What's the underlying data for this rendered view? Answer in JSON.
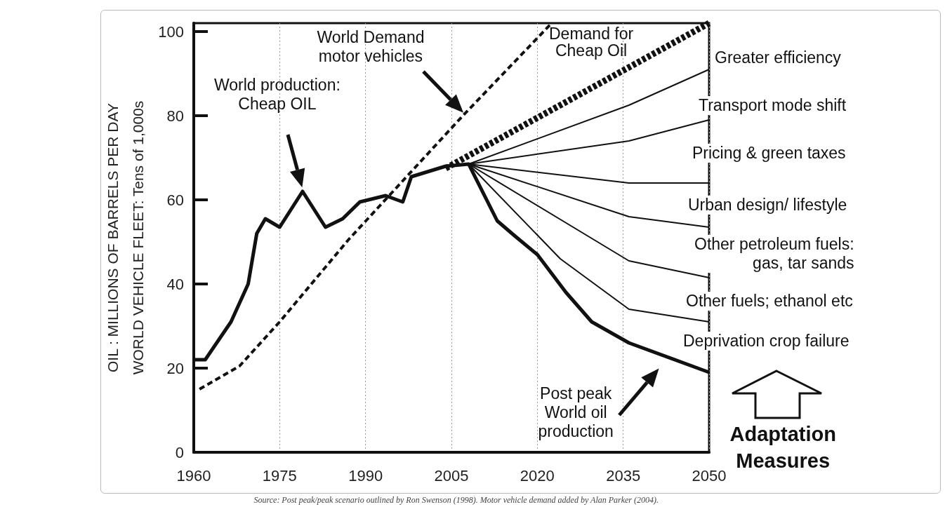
{
  "chart_data": {
    "type": "line",
    "ylabel": "OIL : MILLIONS OF BARRELS PER DAY\nWORLD VEHICLE FLEET: Tens of 1,000s",
    "xlim": [
      1960,
      2050
    ],
    "xticks": [
      1960,
      1975,
      1990,
      2005,
      2020,
      2035,
      2050
    ],
    "ylim": [
      0,
      102
    ],
    "yticks": [
      0,
      20,
      40,
      60,
      80,
      100
    ],
    "grid": "x",
    "series": [
      {
        "color": "#111111",
        "x": [
          1960,
          1962,
          1966.5,
          1969.5,
          1971,
          1972.5,
          1975,
          1979,
          1983,
          1986,
          1989,
          1993.5,
          1996.5,
          1998,
          2004,
          2008,
          2013,
          2016,
          2020,
          2025,
          2029.5,
          2036,
          2050
        ],
        "values": [
          22,
          22,
          31,
          40,
          52,
          55.5,
          53.5,
          62,
          53.5,
          55.5,
          59.5,
          61,
          59.5,
          65.5,
          68,
          68.5,
          55,
          51.5,
          47,
          38,
          31,
          26,
          19
        ]
      },
      {
        "color": "#111111",
        "line_style": "dashed",
        "x": [
          1961,
          1968,
          1975,
          1987,
          2007,
          2022.5
        ],
        "values": [
          15,
          20.5,
          31,
          50.5,
          80,
          102
        ]
      },
      {
        "color": "#111111",
        "line_style": "dashed",
        "x": [
          2004,
          2050
        ],
        "values": [
          67.5,
          102
        ]
      },
      {
        "color": "#111111",
        "x": [
          2008,
          2036,
          2050
        ],
        "values": [
          68.5,
          82.5,
          91
        ]
      },
      {
        "color": "#111111",
        "x": [
          2008,
          2036,
          2050
        ],
        "values": [
          68.5,
          74,
          79
        ]
      },
      {
        "color": "#111111",
        "x": [
          2008,
          2036,
          2050
        ],
        "values": [
          68.5,
          64,
          64
        ]
      },
      {
        "color": "#111111",
        "x": [
          2008,
          2036,
          2050
        ],
        "values": [
          68.5,
          56,
          53.5
        ]
      },
      {
        "color": "#111111",
        "x": [
          2008,
          2036,
          2050
        ],
        "values": [
          68.5,
          45.5,
          41.5
        ]
      },
      {
        "color": "#111111",
        "x": [
          2008,
          2024,
          2036,
          2050
        ],
        "values": [
          68.5,
          46,
          34,
          31
        ]
      }
    ],
    "annotations": [
      "World production:\nCheap OIL",
      "World Demand\nmotor vehicles",
      "Demand for\nCheap Oil",
      "Post peak\nWorld oil\nproduction",
      "Greater efficiency",
      "Transport mode shift",
      "Pricing & green taxes",
      "Urban design/ lifestyle",
      "Other petroleum fuels:\ngas, tar sands",
      "Other fuels; ethanol etc",
      "Deprivation crop failure",
      "Adaptation\nMeasures",
      "Source: Post peak/peak scenario outlined by Ron Swenson (1998). Motor vehicle demand added by Alan Parker (2004)."
    ]
  }
}
